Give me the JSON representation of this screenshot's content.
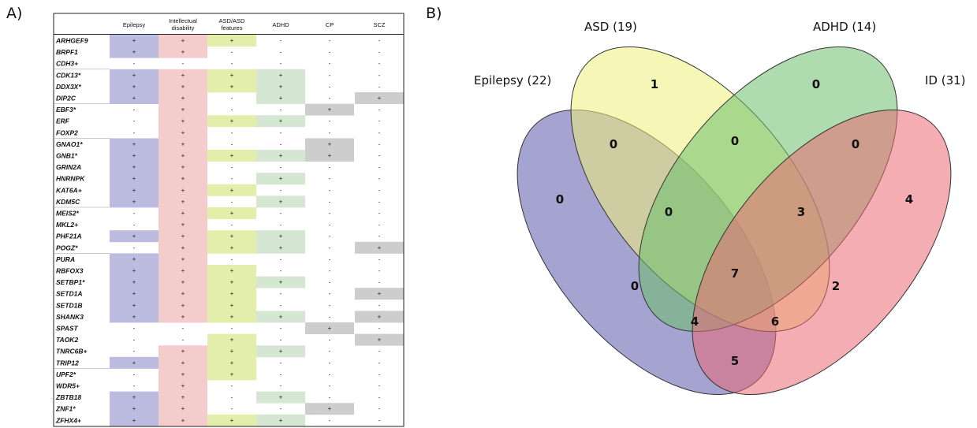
{
  "panel_a": {
    "label": "A)",
    "columns": [
      {
        "lines": [
          "Epilepsy"
        ]
      },
      {
        "lines": [
          "Intellectual",
          "disability"
        ]
      },
      {
        "lines": [
          "ASD/ASD",
          "features"
        ]
      },
      {
        "lines": [
          "ADHD"
        ]
      },
      {
        "lines": [
          "CP"
        ]
      },
      {
        "lines": [
          "SCZ"
        ]
      }
    ],
    "highlight_colors": [
      "#bcbce0",
      "#f5cccc",
      "#e3eeaa",
      "#d5e6d2",
      "#cdcdcd",
      "#cdcdcd"
    ],
    "rows": [
      {
        "gene": "ARHGEF9",
        "cells": [
          "+",
          "+",
          "+",
          "-",
          "-",
          "-"
        ],
        "hl": [
          1,
          1,
          1,
          0,
          0,
          0
        ]
      },
      {
        "gene": "BRPF1",
        "cells": [
          "+",
          "+",
          "-",
          "-",
          "-",
          "-"
        ],
        "hl": [
          1,
          1,
          0,
          0,
          0,
          0
        ]
      },
      {
        "gene": "CDH3+",
        "cells": [
          "-",
          "-",
          "-",
          "-",
          "-",
          "-"
        ],
        "hl": [
          0,
          0,
          0,
          0,
          0,
          0
        ]
      },
      {
        "gene": "CDK13*",
        "cells": [
          "+",
          "+",
          "+",
          "+",
          "-",
          "-"
        ],
        "hl": [
          1,
          1,
          1,
          1,
          0,
          0
        ]
      },
      {
        "gene": "DDX3X*",
        "cells": [
          "+",
          "+",
          "+",
          "+",
          "-",
          "-"
        ],
        "hl": [
          1,
          1,
          1,
          1,
          0,
          0
        ]
      },
      {
        "gene": "DIP2C",
        "cells": [
          "+",
          "+",
          "-",
          "+",
          "-",
          "+"
        ],
        "hl": [
          1,
          1,
          0,
          1,
          0,
          1
        ]
      },
      {
        "gene": "EBF3*",
        "cells": [
          "-",
          "+",
          "-",
          "-",
          "+",
          "-"
        ],
        "hl": [
          0,
          1,
          0,
          0,
          1,
          0
        ]
      },
      {
        "gene": "ERF",
        "cells": [
          "-",
          "+",
          "+",
          "+",
          "-",
          "-"
        ],
        "hl": [
          0,
          1,
          1,
          1,
          0,
          0
        ]
      },
      {
        "gene": "FOXP2",
        "cells": [
          "-",
          "+",
          "-",
          "-",
          "-",
          "-"
        ],
        "hl": [
          0,
          1,
          0,
          0,
          0,
          0
        ]
      },
      {
        "gene": "GNAO1*",
        "cells": [
          "+",
          "+",
          "-",
          "-",
          "+",
          "-"
        ],
        "hl": [
          1,
          1,
          0,
          0,
          1,
          0
        ]
      },
      {
        "gene": "GNB1*",
        "cells": [
          "+",
          "+",
          "+",
          "+",
          "+",
          "-"
        ],
        "hl": [
          1,
          1,
          1,
          1,
          1,
          0
        ]
      },
      {
        "gene": "GRIN2A",
        "cells": [
          "+",
          "+",
          "-",
          "-",
          "-",
          "-"
        ],
        "hl": [
          1,
          1,
          0,
          0,
          0,
          0
        ]
      },
      {
        "gene": "HNRNPK",
        "cells": [
          "+",
          "+",
          "-",
          "+",
          "-",
          "-"
        ],
        "hl": [
          1,
          1,
          0,
          1,
          0,
          0
        ]
      },
      {
        "gene": "KAT6A+",
        "cells": [
          "+",
          "+",
          "+",
          "-",
          "-",
          "-"
        ],
        "hl": [
          1,
          1,
          1,
          0,
          0,
          0
        ]
      },
      {
        "gene": "KDM5C",
        "cells": [
          "+",
          "+",
          "-",
          "+",
          "-",
          "-"
        ],
        "hl": [
          1,
          1,
          0,
          1,
          0,
          0
        ]
      },
      {
        "gene": "MEIS2*",
        "cells": [
          "-",
          "+",
          "+",
          "-",
          "-",
          "-"
        ],
        "hl": [
          0,
          1,
          1,
          0,
          0,
          0
        ]
      },
      {
        "gene": "MKL2+",
        "cells": [
          "-",
          "+",
          "-",
          "-",
          "-",
          "-"
        ],
        "hl": [
          0,
          1,
          0,
          0,
          0,
          0
        ]
      },
      {
        "gene": "PHF21A",
        "cells": [
          "+",
          "+",
          "+",
          "+",
          "-",
          "-"
        ],
        "hl": [
          1,
          1,
          1,
          1,
          0,
          0
        ]
      },
      {
        "gene": "POGZ*",
        "cells": [
          "-",
          "+",
          "+",
          "+",
          "-",
          "+"
        ],
        "hl": [
          0,
          1,
          1,
          1,
          0,
          1
        ]
      },
      {
        "gene": "PURA",
        "cells": [
          "+",
          "+",
          "-",
          "-",
          "-",
          "-"
        ],
        "hl": [
          1,
          1,
          0,
          0,
          0,
          0
        ]
      },
      {
        "gene": "RBFOX3",
        "cells": [
          "+",
          "+",
          "+",
          "-",
          "-",
          "-"
        ],
        "hl": [
          1,
          1,
          1,
          0,
          0,
          0
        ]
      },
      {
        "gene": "SETBP1*",
        "cells": [
          "+",
          "+",
          "+",
          "+",
          "-",
          "-"
        ],
        "hl": [
          1,
          1,
          1,
          1,
          0,
          0
        ]
      },
      {
        "gene": "SETD1A",
        "cells": [
          "+",
          "+",
          "+",
          "-",
          "-",
          "+"
        ],
        "hl": [
          1,
          1,
          1,
          0,
          0,
          1
        ]
      },
      {
        "gene": "SETD1B",
        "cells": [
          "+",
          "+",
          "+",
          "-",
          "-",
          "-"
        ],
        "hl": [
          1,
          1,
          1,
          0,
          0,
          0
        ]
      },
      {
        "gene": "SHANK3",
        "cells": [
          "+",
          "+",
          "+",
          "+",
          "-",
          "+"
        ],
        "hl": [
          1,
          1,
          1,
          1,
          0,
          1
        ]
      },
      {
        "gene": "SPAST",
        "cells": [
          "-",
          "-",
          "-",
          "-",
          "+",
          "-"
        ],
        "hl": [
          0,
          0,
          0,
          0,
          1,
          0
        ]
      },
      {
        "gene": "TAOK2",
        "cells": [
          "-",
          "-",
          "+",
          "-",
          "-",
          "+"
        ],
        "hl": [
          0,
          0,
          1,
          0,
          0,
          1
        ]
      },
      {
        "gene": "TNRC6B+",
        "cells": [
          "-",
          "+",
          "+",
          "+",
          "-",
          "-"
        ],
        "hl": [
          0,
          1,
          1,
          1,
          0,
          0
        ]
      },
      {
        "gene": "TRIP12",
        "cells": [
          "+",
          "+",
          "+",
          "-",
          "-",
          "-"
        ],
        "hl": [
          1,
          1,
          1,
          0,
          0,
          0
        ]
      },
      {
        "gene": "UPF2*",
        "cells": [
          "-",
          "+",
          "+",
          "-",
          "-",
          "-"
        ],
        "hl": [
          0,
          1,
          1,
          0,
          0,
          0
        ]
      },
      {
        "gene": "WDR5+",
        "cells": [
          "-",
          "+",
          "-",
          "-",
          "-",
          "-"
        ],
        "hl": [
          0,
          1,
          0,
          0,
          0,
          0
        ]
      },
      {
        "gene": "ZBTB18",
        "cells": [
          "+",
          "+",
          "-",
          "+",
          "-",
          "-"
        ],
        "hl": [
          1,
          1,
          0,
          1,
          0,
          0
        ]
      },
      {
        "gene": "ZNF1*",
        "cells": [
          "+",
          "+",
          "-",
          "-",
          "+",
          "-"
        ],
        "hl": [
          1,
          1,
          0,
          0,
          1,
          0
        ]
      },
      {
        "gene": "ZFHX4+",
        "cells": [
          "+",
          "+",
          "+",
          "+",
          "-",
          "-"
        ],
        "hl": [
          1,
          1,
          1,
          1,
          0,
          0
        ]
      }
    ]
  },
  "panel_b": {
    "label": "B)",
    "sets": {
      "epilepsy": {
        "label": "Epilepsy (22)",
        "color": "#5b57a9"
      },
      "asd": {
        "label": "ASD (19)",
        "color": "#eef07a"
      },
      "adhd": {
        "label": "ADHD (14)",
        "color": "#6cbf6c"
      },
      "id": {
        "label": "ID (31)",
        "color": "#e96a74"
      }
    },
    "regions": {
      "epilepsy_only": "0",
      "asd_only": "1",
      "adhd_only": "0",
      "id_only": "4",
      "epilepsy_asd": "0",
      "asd_adhd": "0",
      "adhd_id": "0",
      "epilepsy_asd_adhd": "0",
      "asd_adhd_id": "3",
      "epilepsy_adhd": "0",
      "all_four": "7",
      "asd_id": "2",
      "epilepsy_adhd_id": "4",
      "epilepsy_asd_id": "6",
      "epilepsy_id": "5"
    }
  }
}
